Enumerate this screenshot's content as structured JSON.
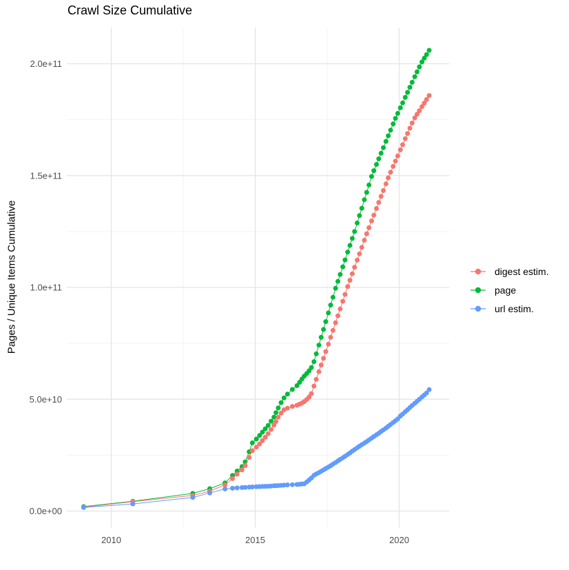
{
  "chart_data": {
    "type": "scatter",
    "title": "Crawl Size Cumulative",
    "xlabel": "",
    "ylabel": "Pages / Unique Items Cumulative",
    "value_unit": "1e9 (billions of items); y tick 5.0e+10 = 50",
    "x_axis": {
      "range": [
        2008.47,
        2021.75
      ],
      "ticks": [
        2010,
        2015,
        2020
      ],
      "tick_labels": [
        "2010",
        "2015",
        "2020"
      ],
      "minor_ticks": [
        2012.5,
        2017.5
      ]
    },
    "y_axis": {
      "range": [
        -7.4,
        223.5
      ],
      "ticks": [
        0,
        50,
        100,
        150,
        200
      ],
      "tick_labels": [
        "0.0e+00",
        "5.0e+10",
        "1.0e+11",
        "1.5e+11",
        "2.0e+11"
      ],
      "minor_ticks": [
        25,
        75,
        125,
        175
      ]
    },
    "grid": {
      "major_color": "#E3E3E3",
      "minor_color": "#F0F0F0",
      "background": "#FFFFFF",
      "axis_text_color": "#4D4D4D"
    },
    "legend": {
      "position": "right",
      "items": [
        {
          "label": "digest estim.",
          "color": "#F8766D"
        },
        {
          "label": "page",
          "color": "#00BA38"
        },
        {
          "label": "url estim.",
          "color": "#619CFF"
        }
      ]
    },
    "draw_order": [
      1,
      0,
      2
    ],
    "series": [
      {
        "name": "digest estim.",
        "color": "#F8766D",
        "points": [
          [
            2009.04,
            1.8
          ],
          [
            2010.75,
            4.2
          ],
          [
            2012.83,
            7.0
          ],
          [
            2013.42,
            8.9
          ],
          [
            2013.95,
            11.7
          ],
          [
            2014.21,
            14.5
          ],
          [
            2014.37,
            16.5
          ],
          [
            2014.54,
            18.4
          ],
          [
            2014.65,
            20.3
          ],
          [
            2014.79,
            24.0
          ],
          [
            2014.9,
            27.0
          ],
          [
            2015.04,
            28.6
          ],
          [
            2015.15,
            30.0
          ],
          [
            2015.25,
            31.5
          ],
          [
            2015.35,
            33.0
          ],
          [
            2015.45,
            34.6
          ],
          [
            2015.55,
            36.5
          ],
          [
            2015.65,
            38.5
          ],
          [
            2015.72,
            40.0
          ],
          [
            2015.8,
            42.0
          ],
          [
            2015.9,
            43.8
          ],
          [
            2016.0,
            45.3
          ],
          [
            2016.12,
            46.0
          ],
          [
            2016.29,
            46.8
          ],
          [
            2016.45,
            47.3
          ],
          [
            2016.54,
            47.8
          ],
          [
            2016.62,
            48.3
          ],
          [
            2016.7,
            48.9
          ],
          [
            2016.79,
            49.9
          ],
          [
            2016.87,
            51.0
          ],
          [
            2016.95,
            52.5
          ],
          [
            2017.04,
            55.9
          ],
          [
            2017.12,
            58.9
          ],
          [
            2017.21,
            62.3
          ],
          [
            2017.29,
            65.3
          ],
          [
            2017.37,
            68.3
          ],
          [
            2017.45,
            71.3
          ],
          [
            2017.54,
            74.6
          ],
          [
            2017.62,
            77.7
          ],
          [
            2017.7,
            80.8
          ],
          [
            2017.79,
            84.2
          ],
          [
            2017.87,
            87.3
          ],
          [
            2017.95,
            90.4
          ],
          [
            2018.04,
            93.8
          ],
          [
            2018.12,
            96.9
          ],
          [
            2018.21,
            100.4
          ],
          [
            2018.29,
            103.2
          ],
          [
            2018.37,
            106.1
          ],
          [
            2018.45,
            109.0
          ],
          [
            2018.54,
            112.2
          ],
          [
            2018.62,
            115.0
          ],
          [
            2018.7,
            117.9
          ],
          [
            2018.79,
            121.1
          ],
          [
            2018.87,
            124.0
          ],
          [
            2018.95,
            126.7
          ],
          [
            2019.04,
            129.7
          ],
          [
            2019.12,
            132.3
          ],
          [
            2019.21,
            135.3
          ],
          [
            2019.29,
            138.0
          ],
          [
            2019.37,
            140.7
          ],
          [
            2019.45,
            143.3
          ],
          [
            2019.54,
            146.3
          ],
          [
            2019.62,
            149.0
          ],
          [
            2019.7,
            151.5
          ],
          [
            2019.79,
            154.1
          ],
          [
            2019.87,
            156.5
          ],
          [
            2019.95,
            158.8
          ],
          [
            2020.04,
            161.5
          ],
          [
            2020.12,
            163.8
          ],
          [
            2020.21,
            166.5
          ],
          [
            2020.29,
            168.8
          ],
          [
            2020.37,
            171.2
          ],
          [
            2020.45,
            173.5
          ],
          [
            2020.54,
            175.8
          ],
          [
            2020.62,
            177.4
          ],
          [
            2020.7,
            179.0
          ],
          [
            2020.79,
            180.8
          ],
          [
            2020.87,
            182.4
          ],
          [
            2020.95,
            184.0
          ],
          [
            2021.04,
            185.8
          ]
        ]
      },
      {
        "name": "page",
        "color": "#00BA38",
        "points": [
          [
            2009.04,
            2.0
          ],
          [
            2010.75,
            4.4
          ],
          [
            2012.83,
            7.9
          ],
          [
            2013.42,
            10.0
          ],
          [
            2013.95,
            12.6
          ],
          [
            2014.21,
            15.9
          ],
          [
            2014.37,
            17.9
          ],
          [
            2014.54,
            19.9
          ],
          [
            2014.65,
            22.0
          ],
          [
            2014.79,
            26.5
          ],
          [
            2014.9,
            30.5
          ],
          [
            2015.04,
            32.2
          ],
          [
            2015.15,
            33.8
          ],
          [
            2015.25,
            35.3
          ],
          [
            2015.35,
            36.8
          ],
          [
            2015.45,
            38.3
          ],
          [
            2015.55,
            40.2
          ],
          [
            2015.65,
            42.0
          ],
          [
            2015.72,
            44.0
          ],
          [
            2015.8,
            46.1
          ],
          [
            2015.9,
            48.5
          ],
          [
            2016.0,
            50.6
          ],
          [
            2016.12,
            52.3
          ],
          [
            2016.29,
            54.4
          ],
          [
            2016.45,
            56.1
          ],
          [
            2016.54,
            57.6
          ],
          [
            2016.62,
            59.0
          ],
          [
            2016.7,
            60.3
          ],
          [
            2016.79,
            61.5
          ],
          [
            2016.87,
            62.7
          ],
          [
            2016.95,
            64.2
          ],
          [
            2017.04,
            66.8
          ],
          [
            2017.12,
            70.3
          ],
          [
            2017.21,
            74.2
          ],
          [
            2017.29,
            77.7
          ],
          [
            2017.37,
            81.2
          ],
          [
            2017.45,
            84.7
          ],
          [
            2017.54,
            88.6
          ],
          [
            2017.62,
            92.1
          ],
          [
            2017.7,
            95.6
          ],
          [
            2017.79,
            99.6
          ],
          [
            2017.87,
            102.7
          ],
          [
            2017.95,
            105.8
          ],
          [
            2018.04,
            109.2
          ],
          [
            2018.12,
            112.3
          ],
          [
            2018.21,
            115.8
          ],
          [
            2018.29,
            118.8
          ],
          [
            2018.37,
            121.9
          ],
          [
            2018.45,
            125.0
          ],
          [
            2018.54,
            128.8
          ],
          [
            2018.62,
            132.1
          ],
          [
            2018.7,
            135.4
          ],
          [
            2018.79,
            139.2
          ],
          [
            2018.87,
            142.5
          ],
          [
            2018.95,
            145.8
          ],
          [
            2019.04,
            149.6
          ],
          [
            2019.12,
            152.2
          ],
          [
            2019.21,
            155.0
          ],
          [
            2019.29,
            157.5
          ],
          [
            2019.37,
            160.0
          ],
          [
            2019.45,
            162.5
          ],
          [
            2019.54,
            165.3
          ],
          [
            2019.62,
            167.8
          ],
          [
            2019.7,
            170.3
          ],
          [
            2019.79,
            173.1
          ],
          [
            2019.87,
            175.6
          ],
          [
            2019.95,
            177.8
          ],
          [
            2020.04,
            180.3
          ],
          [
            2020.12,
            182.5
          ],
          [
            2020.21,
            185.0
          ],
          [
            2020.29,
            187.2
          ],
          [
            2020.37,
            189.5
          ],
          [
            2020.45,
            191.7
          ],
          [
            2020.54,
            194.2
          ],
          [
            2020.62,
            196.4
          ],
          [
            2020.7,
            198.6
          ],
          [
            2020.79,
            200.8
          ],
          [
            2020.87,
            202.5
          ],
          [
            2020.95,
            204.1
          ],
          [
            2021.04,
            206.0
          ]
        ]
      },
      {
        "name": "url estim.",
        "color": "#619CFF",
        "points": [
          [
            2009.04,
            1.6
          ],
          [
            2010.75,
            3.2
          ],
          [
            2012.83,
            6.1
          ],
          [
            2013.42,
            8.1
          ],
          [
            2013.95,
            9.9
          ],
          [
            2014.21,
            10.2
          ],
          [
            2014.37,
            10.35
          ],
          [
            2014.54,
            10.5
          ],
          [
            2014.65,
            10.6
          ],
          [
            2014.79,
            10.7
          ],
          [
            2014.9,
            10.8
          ],
          [
            2015.04,
            10.9
          ],
          [
            2015.15,
            10.95
          ],
          [
            2015.25,
            11.0
          ],
          [
            2015.35,
            11.05
          ],
          [
            2015.45,
            11.1
          ],
          [
            2015.55,
            11.2
          ],
          [
            2015.65,
            11.3
          ],
          [
            2015.72,
            11.35
          ],
          [
            2015.8,
            11.4
          ],
          [
            2015.9,
            11.5
          ],
          [
            2016.0,
            11.6
          ],
          [
            2016.12,
            11.7
          ],
          [
            2016.29,
            11.8
          ],
          [
            2016.45,
            11.9
          ],
          [
            2016.54,
            12.0
          ],
          [
            2016.62,
            12.1
          ],
          [
            2016.7,
            12.2
          ],
          [
            2016.79,
            13.0
          ],
          [
            2016.87,
            13.9
          ],
          [
            2016.95,
            14.8
          ],
          [
            2017.04,
            16.0
          ],
          [
            2017.12,
            16.6
          ],
          [
            2017.21,
            17.2
          ],
          [
            2017.29,
            17.8
          ],
          [
            2017.37,
            18.4
          ],
          [
            2017.45,
            19.0
          ],
          [
            2017.54,
            19.7
          ],
          [
            2017.62,
            20.3
          ],
          [
            2017.7,
            21.0
          ],
          [
            2017.79,
            21.7
          ],
          [
            2017.87,
            22.4
          ],
          [
            2017.95,
            23.1
          ],
          [
            2018.04,
            23.8
          ],
          [
            2018.12,
            24.5
          ],
          [
            2018.21,
            25.3
          ],
          [
            2018.29,
            26.0
          ],
          [
            2018.37,
            26.8
          ],
          [
            2018.45,
            27.5
          ],
          [
            2018.54,
            28.3
          ],
          [
            2018.62,
            29.0
          ],
          [
            2018.7,
            29.7
          ],
          [
            2018.79,
            30.4
          ],
          [
            2018.87,
            31.1
          ],
          [
            2018.95,
            31.8
          ],
          [
            2019.04,
            32.6
          ],
          [
            2019.12,
            33.3
          ],
          [
            2019.21,
            34.1
          ],
          [
            2019.29,
            34.8
          ],
          [
            2019.37,
            35.6
          ],
          [
            2019.45,
            36.3
          ],
          [
            2019.54,
            37.1
          ],
          [
            2019.62,
            37.9
          ],
          [
            2019.7,
            38.7
          ],
          [
            2019.79,
            39.6
          ],
          [
            2019.87,
            40.4
          ],
          [
            2019.95,
            41.2
          ],
          [
            2020.04,
            42.5
          ],
          [
            2020.12,
            43.4
          ],
          [
            2020.21,
            44.4
          ],
          [
            2020.29,
            45.3
          ],
          [
            2020.37,
            46.3
          ],
          [
            2020.45,
            47.2
          ],
          [
            2020.54,
            48.2
          ],
          [
            2020.62,
            49.1
          ],
          [
            2020.7,
            50.0
          ],
          [
            2020.79,
            51.0
          ],
          [
            2020.87,
            51.9
          ],
          [
            2020.95,
            52.8
          ],
          [
            2021.04,
            54.3
          ]
        ]
      }
    ]
  }
}
